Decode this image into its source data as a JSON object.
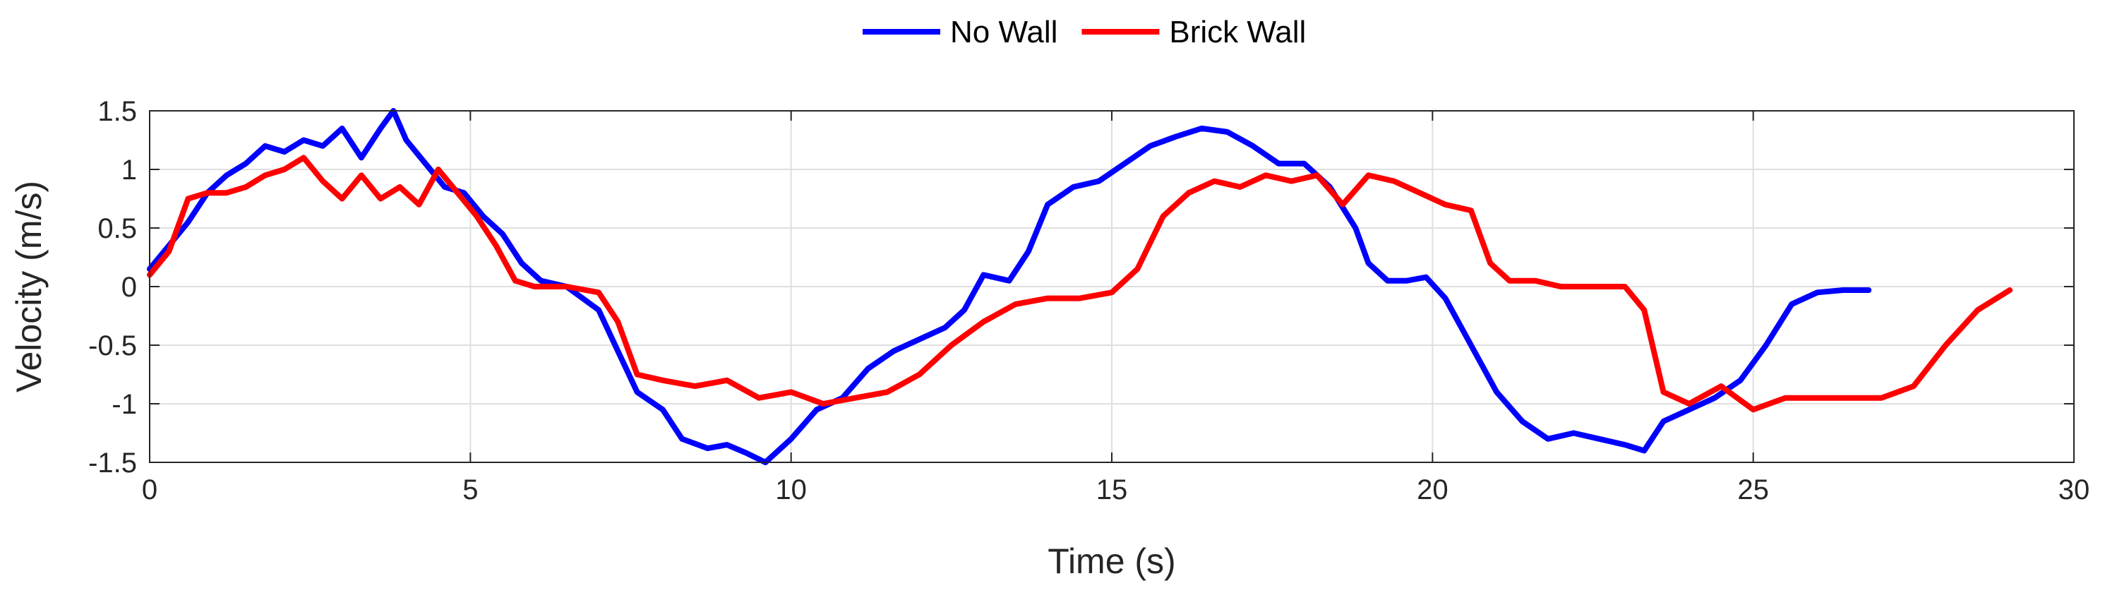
{
  "chart_data": {
    "type": "line",
    "title": "",
    "xlabel": "Time (s)",
    "ylabel": "Velocity (m/s)",
    "xlim": [
      0,
      30
    ],
    "ylim": [
      -1.5,
      1.5
    ],
    "xticks": [
      0,
      5,
      10,
      15,
      20,
      25,
      30
    ],
    "xtick_labels": [
      "0",
      "5",
      "10",
      "15",
      "20",
      "25",
      "30"
    ],
    "yticks": [
      -1.5,
      -1,
      -0.5,
      0,
      0.5,
      1,
      1.5
    ],
    "ytick_labels": [
      "-1.5",
      "-1",
      "-0.5",
      "0",
      "0.5",
      "1",
      "1.5"
    ],
    "grid": true,
    "legend_position": "top-center, outside plot area",
    "series": [
      {
        "name": "No Wall",
        "color": "#0000ff",
        "x": [
          0,
          0.3,
          0.6,
          0.9,
          1.2,
          1.5,
          1.8,
          2.1,
          2.4,
          2.7,
          3.0,
          3.3,
          3.6,
          3.8,
          4.0,
          4.3,
          4.6,
          4.9,
          5.2,
          5.5,
          5.8,
          6.1,
          6.5,
          7.0,
          7.3,
          7.6,
          8.0,
          8.3,
          8.7,
          9.0,
          9.3,
          9.6,
          10.0,
          10.4,
          10.8,
          11.2,
          11.6,
          12.0,
          12.4,
          12.7,
          13.0,
          13.4,
          13.7,
          14.0,
          14.4,
          14.8,
          15.2,
          15.6,
          16.0,
          16.4,
          16.8,
          17.2,
          17.6,
          18.0,
          18.4,
          18.8,
          19.0,
          19.3,
          19.6,
          19.9,
          20.2,
          20.6,
          21.0,
          21.4,
          21.8,
          22.2,
          22.6,
          23.0,
          23.3,
          23.6,
          24.0,
          24.4,
          24.8,
          25.2,
          25.6,
          26.0,
          26.4,
          26.8
        ],
        "y": [
          0.15,
          0.35,
          0.55,
          0.8,
          0.95,
          1.05,
          1.2,
          1.15,
          1.25,
          1.2,
          1.35,
          1.1,
          1.35,
          1.5,
          1.25,
          1.05,
          0.85,
          0.8,
          0.6,
          0.45,
          0.2,
          0.05,
          0.0,
          -0.2,
          -0.55,
          -0.9,
          -1.05,
          -1.3,
          -1.38,
          -1.35,
          -1.42,
          -1.5,
          -1.3,
          -1.05,
          -0.95,
          -0.7,
          -0.55,
          -0.45,
          -0.35,
          -0.2,
          0.1,
          0.05,
          0.3,
          0.7,
          0.85,
          0.9,
          1.05,
          1.2,
          1.28,
          1.35,
          1.32,
          1.2,
          1.05,
          1.05,
          0.85,
          0.5,
          0.2,
          0.05,
          0.05,
          0.08,
          -0.1,
          -0.5,
          -0.9,
          -1.15,
          -1.3,
          -1.25,
          -1.3,
          -1.35,
          -1.4,
          -1.15,
          -1.05,
          -0.95,
          -0.8,
          -0.5,
          -0.15,
          -0.05,
          -0.03,
          -0.03
        ]
      },
      {
        "name": "Brick Wall",
        "color": "#ff0000",
        "x": [
          0,
          0.3,
          0.6,
          0.9,
          1.2,
          1.5,
          1.8,
          2.1,
          2.4,
          2.7,
          3.0,
          3.3,
          3.6,
          3.9,
          4.2,
          4.5,
          4.8,
          5.1,
          5.4,
          5.7,
          6.0,
          6.5,
          7.0,
          7.3,
          7.6,
          8.0,
          8.5,
          9.0,
          9.5,
          10.0,
          10.5,
          11.0,
          11.5,
          12.0,
          12.5,
          13.0,
          13.5,
          14.0,
          14.5,
          15.0,
          15.4,
          15.8,
          16.2,
          16.6,
          17.0,
          17.4,
          17.8,
          18.2,
          18.6,
          19.0,
          19.4,
          19.8,
          20.2,
          20.6,
          20.9,
          21.2,
          21.6,
          22.0,
          22.5,
          23.0,
          23.3,
          23.6,
          24.0,
          24.5,
          25.0,
          25.5,
          26.0,
          26.5,
          27.0,
          27.5,
          28.0,
          28.5,
          29.0
        ],
        "y": [
          0.1,
          0.3,
          0.75,
          0.8,
          0.8,
          0.85,
          0.95,
          1.0,
          1.1,
          0.9,
          0.75,
          0.95,
          0.75,
          0.85,
          0.7,
          1.0,
          0.8,
          0.6,
          0.35,
          0.05,
          0.0,
          0.0,
          -0.05,
          -0.3,
          -0.75,
          -0.8,
          -0.85,
          -0.8,
          -0.95,
          -0.9,
          -1.0,
          -0.95,
          -0.9,
          -0.75,
          -0.5,
          -0.3,
          -0.15,
          -0.1,
          -0.1,
          -0.05,
          0.15,
          0.6,
          0.8,
          0.9,
          0.85,
          0.95,
          0.9,
          0.95,
          0.7,
          0.95,
          0.9,
          0.8,
          0.7,
          0.65,
          0.2,
          0.05,
          0.05,
          0.0,
          0.0,
          0.0,
          -0.2,
          -0.9,
          -1.0,
          -0.85,
          -1.05,
          -0.95,
          -0.95,
          -0.95,
          -0.95,
          -0.85,
          -0.5,
          -0.2,
          -0.03
        ]
      }
    ]
  }
}
